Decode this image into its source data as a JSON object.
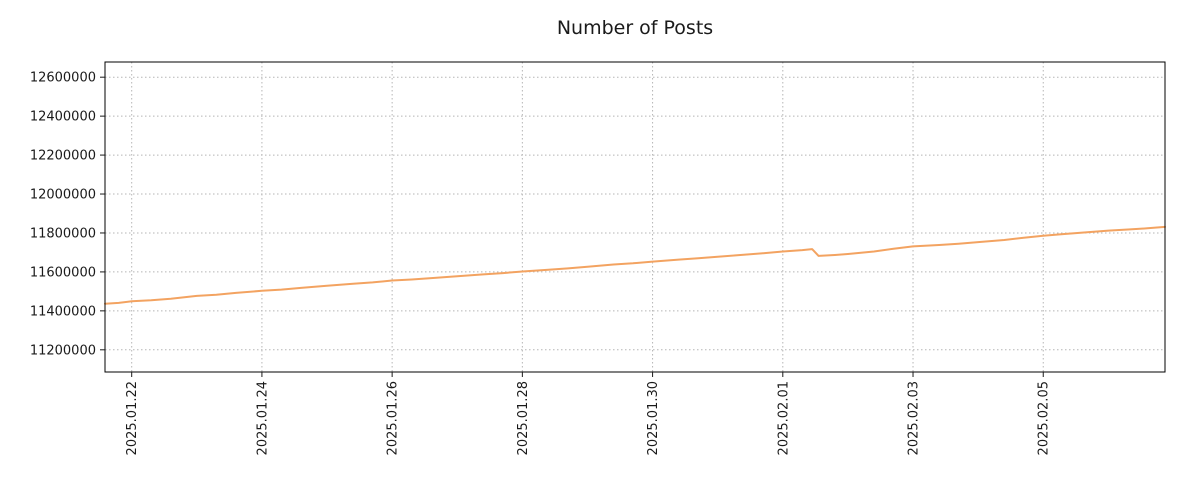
{
  "page": {
    "title": "Number of Posts"
  },
  "chart_data": {
    "type": "line",
    "title": "Number of Posts",
    "xlabel": "",
    "ylabel": "",
    "legend": "none",
    "grid": {
      "show": true,
      "style": "dotted",
      "color": "#b5b5b5"
    },
    "frame_color": "#000000",
    "tick_color": "#1a1a1a",
    "xlim": [
      -0.41,
      15.87
    ],
    "ylim": [
      11086000,
      12678000
    ],
    "x_unit": "days since first x tick",
    "x_ticks": [
      {
        "pos": 0,
        "label": "2025.01.22"
      },
      {
        "pos": 2,
        "label": "2025.01.24"
      },
      {
        "pos": 4,
        "label": "2025.01.26"
      },
      {
        "pos": 6,
        "label": "2025.01.28"
      },
      {
        "pos": 8,
        "label": "2025.01.30"
      },
      {
        "pos": 10,
        "label": "2025.02.01"
      },
      {
        "pos": 12,
        "label": "2025.02.03"
      },
      {
        "pos": 14,
        "label": "2025.02.05"
      }
    ],
    "y_ticks": [
      {
        "pos": 11200000,
        "label": "11200000"
      },
      {
        "pos": 11400000,
        "label": "11400000"
      },
      {
        "pos": 11600000,
        "label": "11600000"
      },
      {
        "pos": 11800000,
        "label": "11800000"
      },
      {
        "pos": 12000000,
        "label": "12000000"
      },
      {
        "pos": 12200000,
        "label": "12200000"
      },
      {
        "pos": 12400000,
        "label": "12400000"
      },
      {
        "pos": 12600000,
        "label": "12600000"
      }
    ],
    "series": [
      {
        "name": "Number of Posts",
        "color": "#f3a361",
        "line_width": 2,
        "points": [
          [
            -0.41,
            11437000
          ],
          [
            -0.2,
            11441000
          ],
          [
            0,
            11449000
          ],
          [
            0.3,
            11454000
          ],
          [
            0.6,
            11462000
          ],
          [
            1,
            11477000
          ],
          [
            1.3,
            11483000
          ],
          [
            1.6,
            11492000
          ],
          [
            2,
            11503000
          ],
          [
            2.3,
            11509000
          ],
          [
            2.6,
            11518000
          ],
          [
            3,
            11529000
          ],
          [
            3.4,
            11539000
          ],
          [
            3.7,
            11546000
          ],
          [
            4,
            11556000
          ],
          [
            4.3,
            11561000
          ],
          [
            4.6,
            11568000
          ],
          [
            5,
            11578000
          ],
          [
            5.4,
            11587000
          ],
          [
            5.7,
            11594000
          ],
          [
            6,
            11602000
          ],
          [
            6.4,
            11611000
          ],
          [
            6.7,
            11618000
          ],
          [
            7,
            11627000
          ],
          [
            7.4,
            11638000
          ],
          [
            7.7,
            11644000
          ],
          [
            8,
            11653000
          ],
          [
            8.4,
            11663000
          ],
          [
            8.7,
            11670000
          ],
          [
            9,
            11678000
          ],
          [
            9.4,
            11688000
          ],
          [
            9.7,
            11696000
          ],
          [
            10,
            11705000
          ],
          [
            10.3,
            11712000
          ],
          [
            10.45,
            11717000
          ],
          [
            10.55,
            11682000
          ],
          [
            10.8,
            11687000
          ],
          [
            11,
            11692000
          ],
          [
            11.4,
            11705000
          ],
          [
            11.7,
            11719000
          ],
          [
            12,
            11731000
          ],
          [
            12.4,
            11738000
          ],
          [
            12.7,
            11745000
          ],
          [
            13,
            11753000
          ],
          [
            13.4,
            11764000
          ],
          [
            13.7,
            11775000
          ],
          [
            14,
            11786000
          ],
          [
            14.3,
            11794000
          ],
          [
            14.6,
            11802000
          ],
          [
            15,
            11812000
          ],
          [
            15.3,
            11818000
          ],
          [
            15.6,
            11824000
          ],
          [
            15.87,
            11831000
          ]
        ]
      }
    ]
  }
}
